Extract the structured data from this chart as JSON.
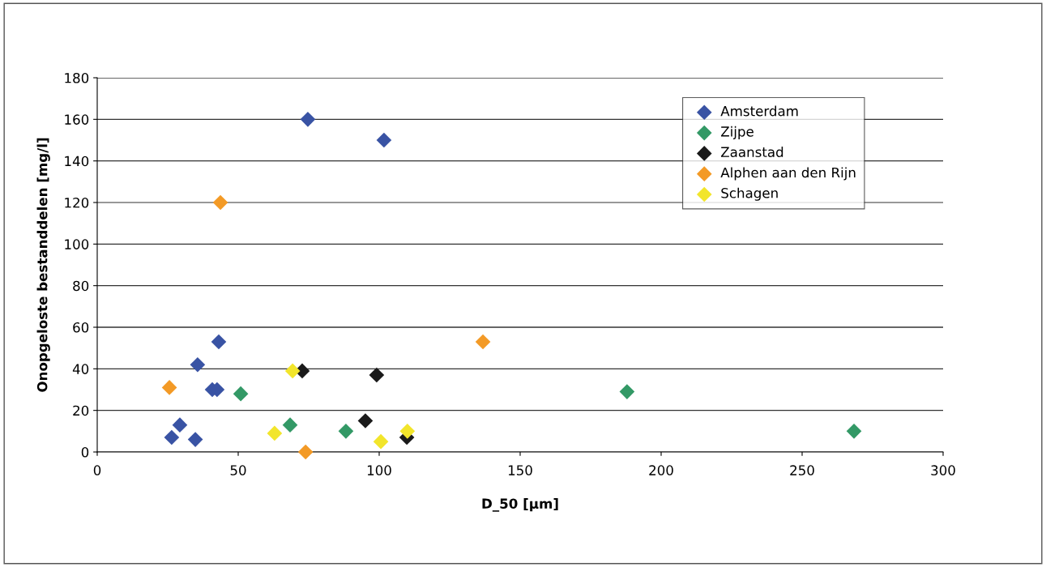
{
  "chart_data": {
    "type": "scatter",
    "xlabel": "D_50 [µm]",
    "ylabel": "Onopgeloste bestanddelen [mg/l]",
    "xlim": [
      0,
      300
    ],
    "xticks": [
      0,
      50,
      100,
      150,
      200,
      250,
      300
    ],
    "ylim": [
      0,
      180
    ],
    "yticks": [
      0,
      20,
      40,
      60,
      80,
      100,
      120,
      140,
      160,
      180
    ],
    "grid": "y",
    "legend": "top right",
    "marker": "diamond",
    "series": [
      {
        "name": "Amsterdam",
        "color": "#3953a4",
        "x": [
          26.4,
          29.3,
          34.8,
          35.6,
          40.8,
          42.5,
          43.1,
          74.7,
          101.7
        ],
        "values": [
          7,
          13,
          6,
          42,
          30,
          30,
          53,
          160,
          150
        ]
      },
      {
        "name": "Zijpe",
        "color": "#339966",
        "x": [
          50.9,
          68.4,
          88.2,
          187.9,
          268.4
        ],
        "values": [
          28,
          13,
          10,
          29,
          10
        ]
      },
      {
        "name": "Zaanstad",
        "color": "#1a1a1a",
        "x": [
          72.7,
          99.1,
          95.1,
          109.8
        ],
        "values": [
          39,
          37,
          15,
          7
        ]
      },
      {
        "name": "Alphen aan den Rijn",
        "color": "#f39a26",
        "x": [
          25.6,
          43.7,
          73.9,
          136.8
        ],
        "values": [
          31,
          120,
          0,
          53
        ]
      },
      {
        "name": "Schagen",
        "color": "#f2e52b",
        "x": [
          62.9,
          69.3,
          100.6,
          110.0
        ],
        "values": [
          9,
          39,
          5,
          10
        ]
      }
    ]
  }
}
